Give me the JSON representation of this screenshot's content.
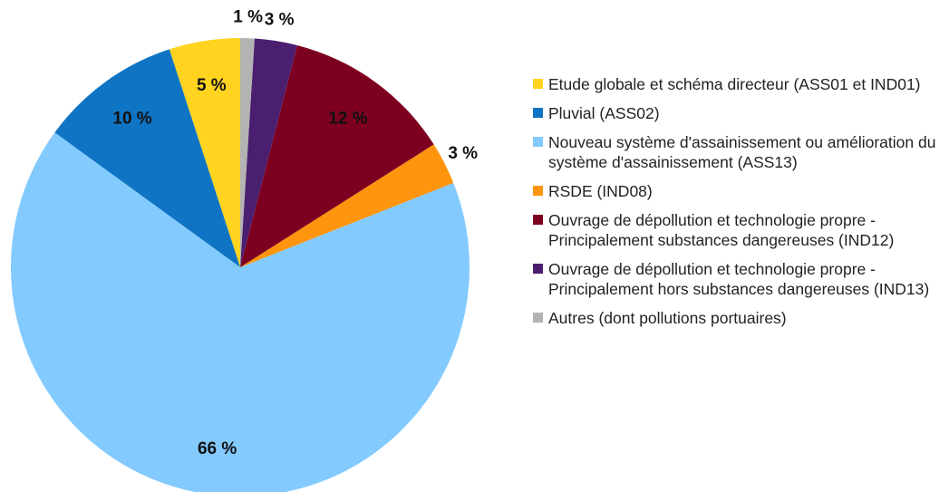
{
  "chart_data": {
    "type": "pie",
    "categories": [
      "Etude globale et schéma directeur (ASS01 et IND01)",
      "Pluvial (ASS02)",
      "Nouveau système d'assainissement ou amélioration du système d'assainissement (ASS13)",
      "RSDE (IND08)",
      "Ouvrage de dépollution et technologie propre - Principalement substances dangereuses (IND12)",
      "Ouvrage de dépollution et technologie propre - Principalement hors substances dangereuses (IND13)",
      "Autres (dont pollutions portuaires)"
    ],
    "values": [
      5,
      10,
      66,
      3,
      12,
      3,
      1
    ],
    "value_labels": [
      "5 %",
      "10 %",
      "66 %",
      "3 %",
      "12 %",
      "3 %",
      "1 %"
    ],
    "colors": [
      "#ffd320",
      "#0f74c3",
      "#83caff",
      "#ff950e",
      "#7e0021",
      "#4b1f6f",
      "#b3b3b3"
    ],
    "direction": "counterclockwise",
    "legend": "right"
  }
}
